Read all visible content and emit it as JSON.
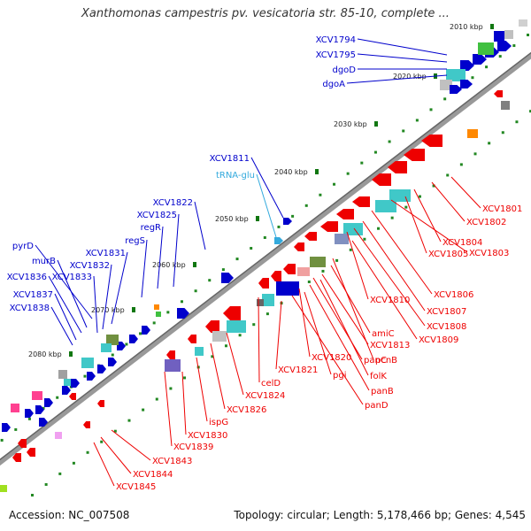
{
  "title": "Xanthomonas campestris pv. vesicatoria str. 85-10, complete ...",
  "footer": {
    "accession": "Accession: NC_007508",
    "summary": "Topology: circular; Length: 5,178,466 bp; Genes: 4,545"
  },
  "scale_labels": [
    "2010 kbp",
    "2020 kbp",
    "2030 kbp",
    "2040 kbp",
    "2050 kbp",
    "2060 kbp",
    "2070 kbp",
    "2080 kbp"
  ],
  "forward_genes": [
    {
      "label": "XCV1794",
      "color": "#0000cc"
    },
    {
      "label": "XCV1795",
      "color": "#0000cc"
    },
    {
      "label": "dgoD",
      "color": "#0000cc"
    },
    {
      "label": "dgoA",
      "color": "#0000cc"
    },
    {
      "label": "XCV1811",
      "color": "#0000cc"
    },
    {
      "label": "tRNA-glu",
      "color": "#33aadd"
    },
    {
      "label": "XCV1822",
      "color": "#0000cc"
    },
    {
      "label": "XCV1825",
      "color": "#0000cc"
    },
    {
      "label": "regR",
      "color": "#0000cc"
    },
    {
      "label": "regS",
      "color": "#0000cc"
    },
    {
      "label": "pyrD",
      "color": "#0000cc"
    },
    {
      "label": "XCV1831",
      "color": "#0000cc"
    },
    {
      "label": "murB",
      "color": "#0000cc"
    },
    {
      "label": "XCV1832",
      "color": "#0000cc"
    },
    {
      "label": "XCV1836",
      "color": "#0000cc"
    },
    {
      "label": "XCV1833",
      "color": "#0000cc"
    },
    {
      "label": "XCV1837",
      "color": "#0000cc"
    },
    {
      "label": "XCV1838",
      "color": "#0000cc"
    }
  ],
  "reverse_genes": [
    {
      "label": "XCV1801",
      "color": "#ee0000"
    },
    {
      "label": "XCV1802",
      "color": "#ee0000"
    },
    {
      "label": "XCV1804",
      "color": "#ee0000"
    },
    {
      "label": "XCV1805",
      "color": "#ee0000"
    },
    {
      "label": "XCV1803",
      "color": "#ee0000"
    },
    {
      "label": "XCV1806",
      "color": "#ee0000"
    },
    {
      "label": "XCV1810",
      "color": "#ee0000"
    },
    {
      "label": "XCV1807",
      "color": "#ee0000"
    },
    {
      "label": "XCV1808",
      "color": "#ee0000"
    },
    {
      "label": "amiC",
      "color": "#ee0000"
    },
    {
      "label": "XCV1809",
      "color": "#ee0000"
    },
    {
      "label": "XCV1813",
      "color": "#ee0000"
    },
    {
      "label": "panC",
      "color": "#ee0000"
    },
    {
      "label": "pcnB",
      "color": "#ee0000"
    },
    {
      "label": "XCV1820",
      "color": "#ee0000"
    },
    {
      "label": "celD",
      "color": "#ee0000"
    },
    {
      "label": "XCV1821",
      "color": "#ee0000"
    },
    {
      "label": "pgi",
      "color": "#ee0000"
    },
    {
      "label": "folK",
      "color": "#ee0000"
    },
    {
      "label": "panB",
      "color": "#ee0000"
    },
    {
      "label": "XCV1824",
      "color": "#ee0000"
    },
    {
      "label": "panD",
      "color": "#ee0000"
    },
    {
      "label": "XCV1826",
      "color": "#ee0000"
    },
    {
      "label": "ispG",
      "color": "#ee0000"
    },
    {
      "label": "XCV1830",
      "color": "#ee0000"
    },
    {
      "label": "XCV1839",
      "color": "#ee0000"
    },
    {
      "label": "XCV1843",
      "color": "#ee0000"
    },
    {
      "label": "XCV1844",
      "color": "#ee0000"
    },
    {
      "label": "XCV1845",
      "color": "#ee0000"
    }
  ],
  "colors": {
    "forward": "#0000cc",
    "reverse": "#ee0000",
    "trna": "#33aadd",
    "backbone": "#888888",
    "tick": "#228822"
  }
}
